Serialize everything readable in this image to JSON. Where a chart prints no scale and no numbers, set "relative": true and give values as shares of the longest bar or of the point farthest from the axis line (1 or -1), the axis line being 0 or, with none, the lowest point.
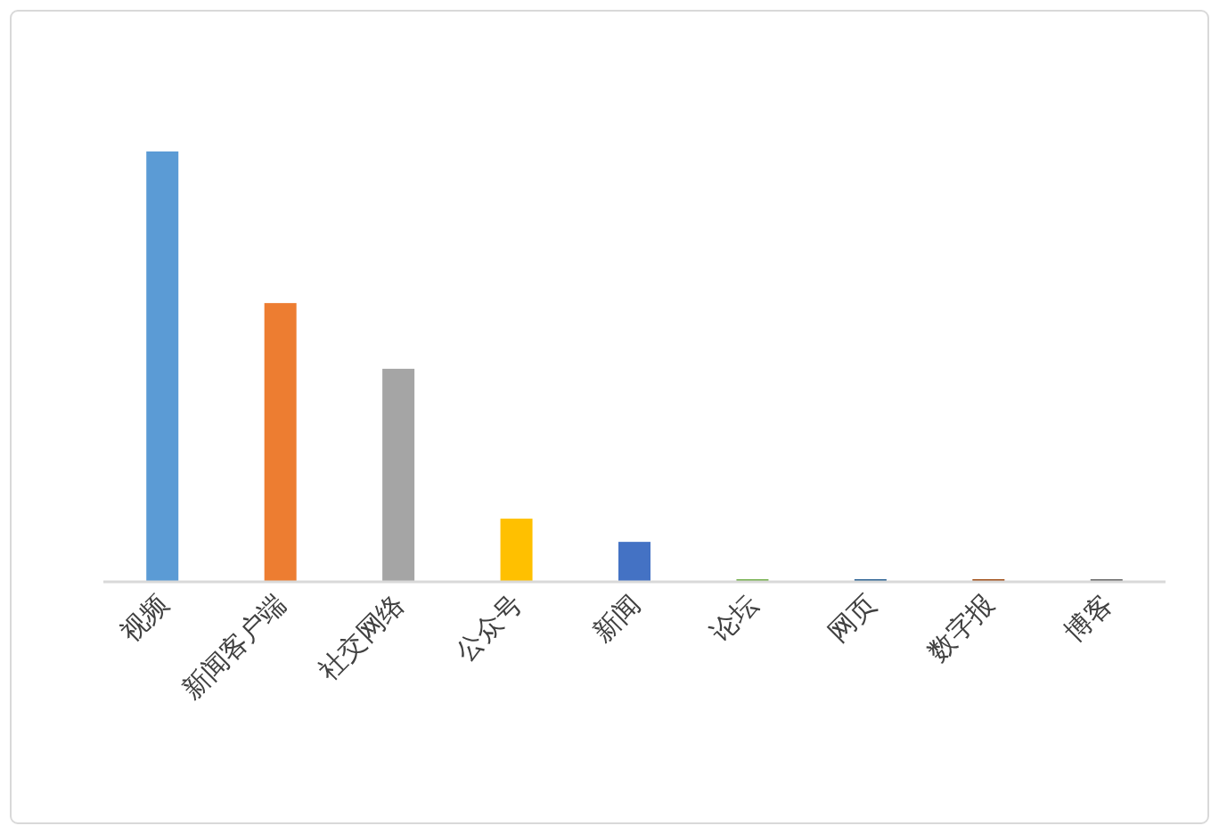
{
  "chart_data": {
    "type": "bar",
    "relative": true,
    "categories": [
      "视频",
      "新闻客户端",
      "社交网络",
      "公众号",
      "新闻",
      "论坛",
      "网页",
      "数字报",
      "博客"
    ],
    "values": [
      1,
      0.647,
      0.494,
      0.145,
      0.091,
      0.004,
      0.004,
      0.004,
      0.004
    ],
    "colors": [
      "#5b9bd5",
      "#ed7d31",
      "#a5a5a5",
      "#ffc000",
      "#4472c4",
      "#70ad47",
      "#255e91",
      "#9e480e",
      "#636363"
    ]
  }
}
